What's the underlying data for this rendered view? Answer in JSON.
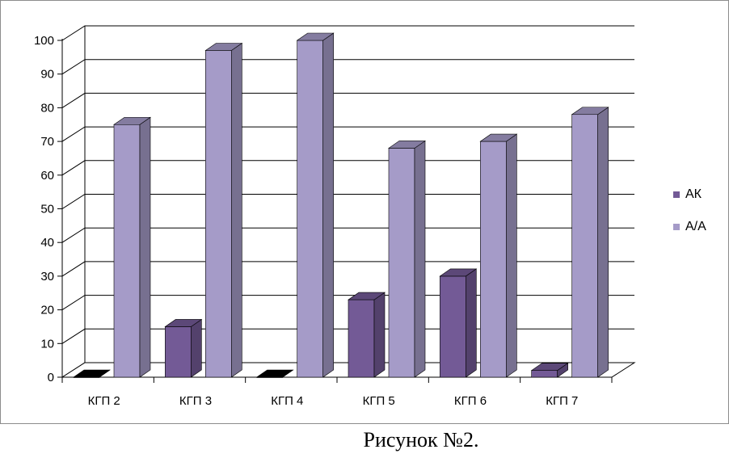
{
  "chart_data": {
    "type": "bar",
    "categories": [
      "КГП 2",
      "КГП 3",
      "КГП 4",
      "КГП 5",
      "КГП 6",
      "КГП 7"
    ],
    "series": [
      {
        "name": "АК",
        "values": [
          0,
          15,
          0,
          23,
          30,
          2
        ],
        "color": "#735a96"
      },
      {
        "name": "А/А",
        "values": [
          75,
          97,
          100,
          68,
          70,
          78
        ],
        "color": "#a59bc8"
      }
    ],
    "y_ticks": [
      "0",
      "10",
      "20",
      "30",
      "40",
      "50",
      "60",
      "70",
      "80",
      "90",
      "100"
    ],
    "ylim": [
      0,
      100
    ],
    "grid": true,
    "legend_position": "right",
    "style": "3d-clustered-column",
    "title": "",
    "xlabel": "",
    "ylabel": ""
  },
  "caption": "Рисунок №2."
}
